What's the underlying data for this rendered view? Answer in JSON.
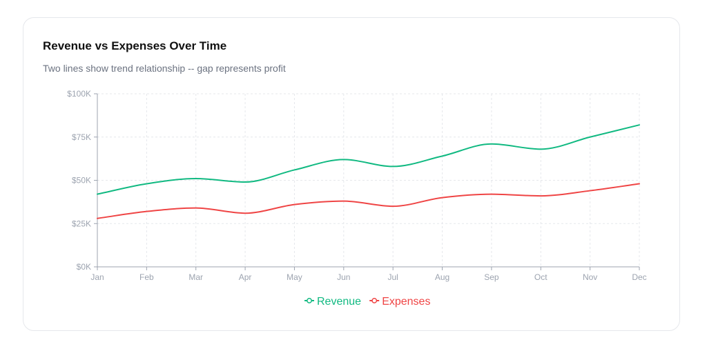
{
  "card": {
    "title": "Revenue vs Expenses Over Time",
    "subtitle": "Two lines show trend relationship -- gap represents profit"
  },
  "chart_data": {
    "type": "line",
    "title": "Revenue vs Expenses Over Time",
    "subtitle": "Two lines show trend relationship -- gap represents profit",
    "xlabel": "",
    "ylabel": "",
    "categories": [
      "Jan",
      "Feb",
      "Mar",
      "Apr",
      "May",
      "Jun",
      "Jul",
      "Aug",
      "Sep",
      "Oct",
      "Nov",
      "Dec"
    ],
    "ylim": [
      0,
      100000
    ],
    "yticks": [
      0,
      25000,
      50000,
      75000,
      100000
    ],
    "ytick_labels": [
      "$0K",
      "$25K",
      "$50K",
      "$75K",
      "$100K"
    ],
    "grid": true,
    "legend_position": "bottom-center",
    "series": [
      {
        "name": "Revenue",
        "color": "#10b981",
        "values": [
          42000,
          48000,
          51000,
          49000,
          56000,
          62000,
          58000,
          64000,
          71000,
          68000,
          75000,
          82000
        ]
      },
      {
        "name": "Expenses",
        "color": "#ef4444",
        "values": [
          28000,
          32000,
          34000,
          31000,
          36000,
          38000,
          35000,
          40000,
          42000,
          41000,
          44000,
          48000
        ]
      }
    ]
  }
}
